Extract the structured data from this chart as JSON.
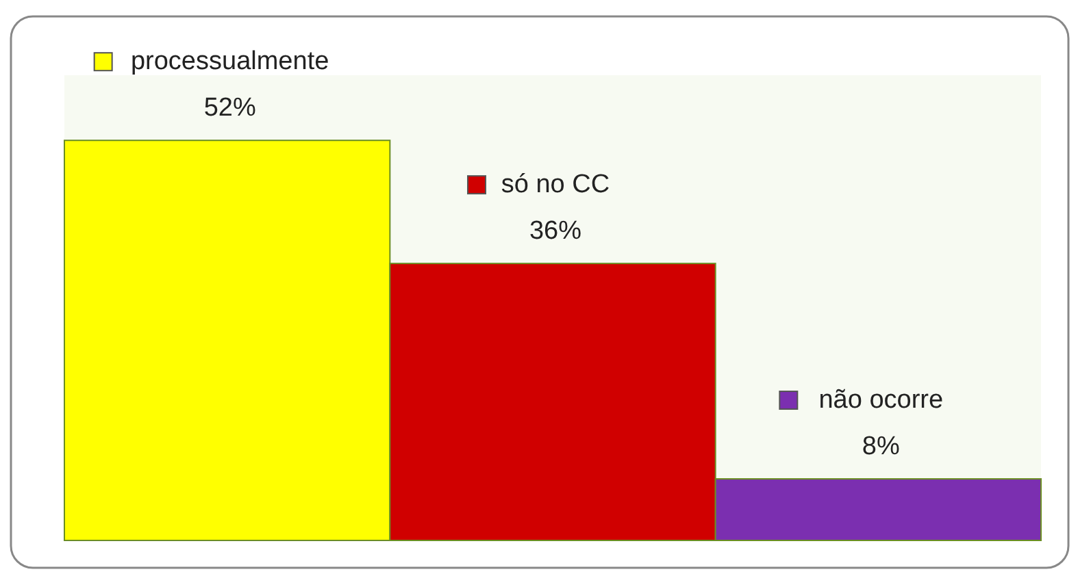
{
  "chart_data": {
    "type": "bar",
    "categories": [
      null,
      null,
      null
    ],
    "values": [
      52,
      36,
      8
    ],
    "colors": [
      "#ffff00",
      "#d00000",
      "#7b2fb0"
    ],
    "value_labels": [
      "processualmente 52%",
      "só no CC 36%",
      "não ocorre 8%"
    ]
  }
}
